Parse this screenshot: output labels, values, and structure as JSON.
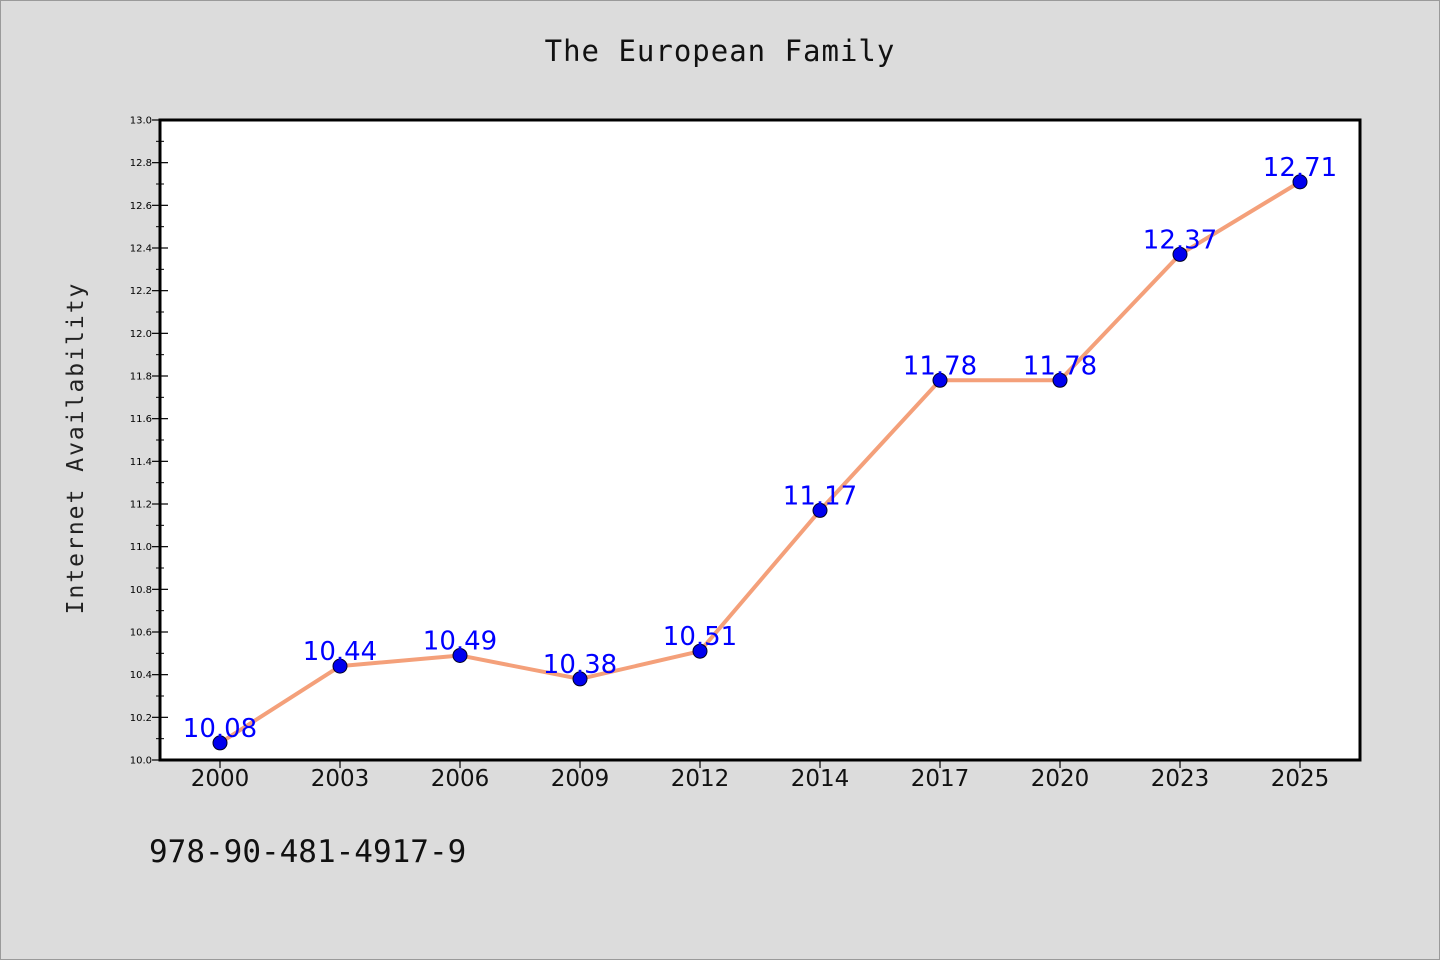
{
  "chart_data": {
    "type": "line",
    "title": "The European Family",
    "xlabel": "",
    "ylabel": "Internet Availability",
    "categories": [
      "2000",
      "2003",
      "2006",
      "2009",
      "2012",
      "2014",
      "2017",
      "2020",
      "2023",
      "2025"
    ],
    "series": [
      {
        "values": [
          10.08,
          10.44,
          10.49,
          10.38,
          10.51,
          11.17,
          11.78,
          11.78,
          12.37,
          12.71
        ],
        "labels": [
          "10.08",
          "10.44",
          "10.49",
          "10.38",
          "10.51",
          "11.17",
          "11.78",
          "11.78",
          "12.37",
          "12.71"
        ],
        "line_color": "#f4a07a",
        "marker_color": "#0000ee"
      }
    ],
    "ylim": [
      10.0,
      13.0
    ],
    "yticks": [
      "10.0",
      "10.2",
      "10.4",
      "10.6",
      "10.8",
      "11.0",
      "11.2",
      "11.4",
      "11.6",
      "11.8",
      "12.0",
      "12.2",
      "12.4",
      "12.6",
      "12.8",
      "13.0"
    ],
    "grid": false,
    "legend": "none",
    "label_color": "#0000ff"
  },
  "footer": {
    "isbn": "978-90-481-4917-9"
  }
}
